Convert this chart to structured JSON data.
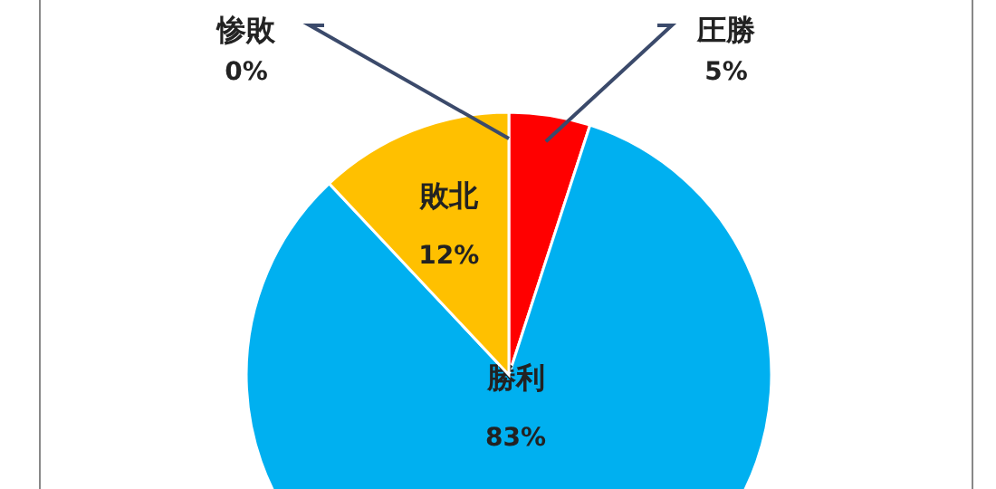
{
  "chart_data": {
    "type": "pie",
    "categories": [
      "圧勝",
      "勝利",
      "敗北",
      "惨敗"
    ],
    "values": [
      5,
      83,
      12,
      0
    ],
    "colors": [
      "#ff0000",
      "#00b0f0",
      "#ffc000",
      "#7f7f7f"
    ],
    "value_labels": [
      "5%",
      "83%",
      "12%",
      "0%"
    ]
  }
}
